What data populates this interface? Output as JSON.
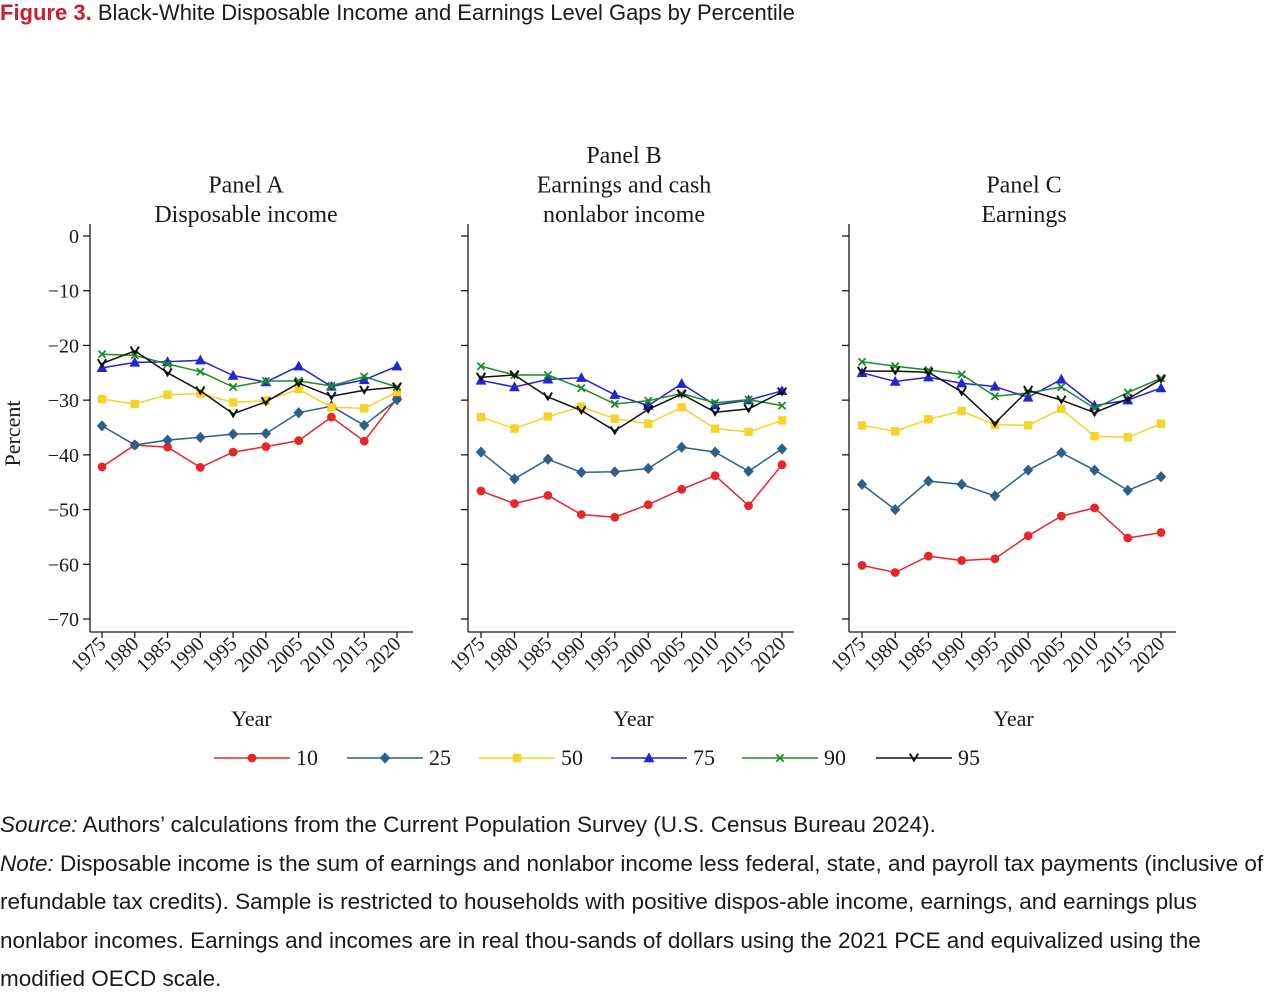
{
  "figure": {
    "label": "Figure 3.",
    "title": "Black-White Disposable Income and Earnings Level Gaps by Percentile"
  },
  "notes": {
    "source_label": "Source:",
    "source_text": "Authors’ calculations from the Current Population Survey (U.S. Census Bureau 2024).",
    "note_label": "Note:",
    "note_text": "Disposable income is the sum of earnings and nonlabor income less federal, state, and payroll tax payments (inclusive of refundable tax credits). Sample is restricted to households with positive dispos-able income, earnings, and earnings plus nonlabor incomes. Earnings and incomes are in real thou-sands of dollars using the 2021 PCE and equivalized using the modified OECD scale."
  },
  "legend": {
    "placement": "bottom-center",
    "entries": [
      {
        "label": "10",
        "color": "#e8262a",
        "marker": "circle"
      },
      {
        "label": "25",
        "color": "#2c5f8a",
        "marker": "diamond"
      },
      {
        "label": "50",
        "color": "#f5d327",
        "marker": "square"
      },
      {
        "label": "75",
        "color": "#2323d8",
        "marker": "triangle"
      },
      {
        "label": "90",
        "color": "#1f8a2a",
        "marker": "x"
      },
      {
        "label": "95",
        "color": "#111111",
        "marker": "v"
      }
    ]
  },
  "chart_data": [
    {
      "type": "line",
      "title": "Panel A\nDisposable income",
      "xlabel": "Year",
      "ylabel": "Percent",
      "ylim": [
        -70,
        0
      ],
      "yticks": [
        0,
        -10,
        -20,
        -30,
        -40,
        -50,
        -60,
        -70
      ],
      "x": [
        "1975",
        "1980",
        "1985",
        "1990",
        "1995",
        "2000",
        "2005",
        "2010",
        "2015",
        "2020"
      ],
      "series": [
        {
          "name": "10",
          "values": [
            -42.2,
            -38.2,
            -38.6,
            -42.3,
            -39.5,
            -38.5,
            -37.4,
            -33.1,
            -37.5,
            -29.7
          ]
        },
        {
          "name": "25",
          "values": [
            -34.7,
            -38.2,
            -37.3,
            -36.8,
            -36.2,
            -36.1,
            -32.3,
            -31.1,
            -34.6,
            -29.9
          ]
        },
        {
          "name": "50",
          "values": [
            -29.8,
            -30.7,
            -29.0,
            -28.8,
            -30.4,
            -30.1,
            -28.0,
            -31.3,
            -31.5,
            -28.5
          ]
        },
        {
          "name": "75",
          "values": [
            -24.1,
            -23.1,
            -23.0,
            -22.7,
            -25.5,
            -26.7,
            -23.8,
            -27.5,
            -26.3,
            -23.8
          ]
        },
        {
          "name": "90",
          "values": [
            -21.6,
            -21.8,
            -23.4,
            -24.8,
            -27.6,
            -26.5,
            -26.5,
            -27.4,
            -25.7,
            -27.6
          ]
        },
        {
          "name": "95",
          "values": [
            -23.3,
            -21.0,
            -25.0,
            -28.3,
            -32.5,
            -30.3,
            -26.9,
            -29.3,
            -28.2,
            -27.6
          ]
        }
      ]
    },
    {
      "type": "line",
      "title": "Panel B\nEarnings and cash\nnonlabor income",
      "xlabel": "Year",
      "ylabel": "",
      "ylim": [
        -70,
        0
      ],
      "yticks": [
        0,
        -10,
        -20,
        -30,
        -40,
        -50,
        -60,
        -70
      ],
      "x": [
        "1975",
        "1980",
        "1985",
        "1990",
        "1995",
        "2000",
        "2005",
        "2010",
        "2015",
        "2020"
      ],
      "series": [
        {
          "name": "10",
          "values": [
            -46.6,
            -48.9,
            -47.4,
            -50.9,
            -51.4,
            -49.1,
            -46.3,
            -43.8,
            -49.3,
            -41.8
          ]
        },
        {
          "name": "25",
          "values": [
            -39.5,
            -44.4,
            -40.8,
            -43.2,
            -43.1,
            -42.5,
            -38.6,
            -39.5,
            -43.0,
            -38.9
          ]
        },
        {
          "name": "50",
          "values": [
            -33.1,
            -35.2,
            -33.0,
            -31.2,
            -33.4,
            -34.3,
            -31.3,
            -35.2,
            -35.8,
            -33.7
          ]
        },
        {
          "name": "75",
          "values": [
            -26.4,
            -27.6,
            -26.2,
            -25.9,
            -29.0,
            -31.0,
            -27.0,
            -30.9,
            -30.0,
            -28.3
          ]
        },
        {
          "name": "90",
          "values": [
            -23.8,
            -25.4,
            -25.4,
            -27.8,
            -30.7,
            -30.1,
            -28.8,
            -30.5,
            -29.9,
            -31.0
          ]
        },
        {
          "name": "95",
          "values": [
            -25.8,
            -25.4,
            -29.4,
            -31.9,
            -35.6,
            -31.7,
            -28.9,
            -32.2,
            -31.6,
            -28.5
          ]
        }
      ]
    },
    {
      "type": "line",
      "title": "Panel C\nEarnings",
      "xlabel": "Year",
      "ylabel": "",
      "ylim": [
        -70,
        0
      ],
      "yticks": [
        0,
        -10,
        -20,
        -30,
        -40,
        -50,
        -60,
        -70
      ],
      "x": [
        "1975",
        "1980",
        "1985",
        "1990",
        "1995",
        "2000",
        "2005",
        "2010",
        "2015",
        "2020"
      ],
      "series": [
        {
          "name": "10",
          "values": [
            -60.2,
            -61.5,
            -58.5,
            -59.3,
            -59.0,
            -54.8,
            -51.2,
            -49.7,
            -55.2,
            -54.2
          ]
        },
        {
          "name": "25",
          "values": [
            -45.4,
            -50.0,
            -44.8,
            -45.4,
            -47.5,
            -42.8,
            -39.6,
            -42.8,
            -46.5,
            -44.0
          ]
        },
        {
          "name": "50",
          "values": [
            -34.6,
            -35.7,
            -33.5,
            -32.0,
            -34.5,
            -34.6,
            -31.6,
            -36.6,
            -36.8,
            -34.3
          ]
        },
        {
          "name": "75",
          "values": [
            -25.0,
            -26.6,
            -25.8,
            -26.9,
            -27.5,
            -29.5,
            -26.2,
            -31.0,
            -30.0,
            -27.8
          ]
        },
        {
          "name": "90",
          "values": [
            -23.0,
            -23.8,
            -24.5,
            -25.3,
            -29.3,
            -28.7,
            -27.6,
            -31.5,
            -28.6,
            -26.0
          ]
        },
        {
          "name": "95",
          "values": [
            -24.7,
            -24.7,
            -24.9,
            -28.5,
            -34.2,
            -28.2,
            -30.0,
            -32.3,
            -29.8,
            -26.2
          ]
        }
      ]
    }
  ]
}
